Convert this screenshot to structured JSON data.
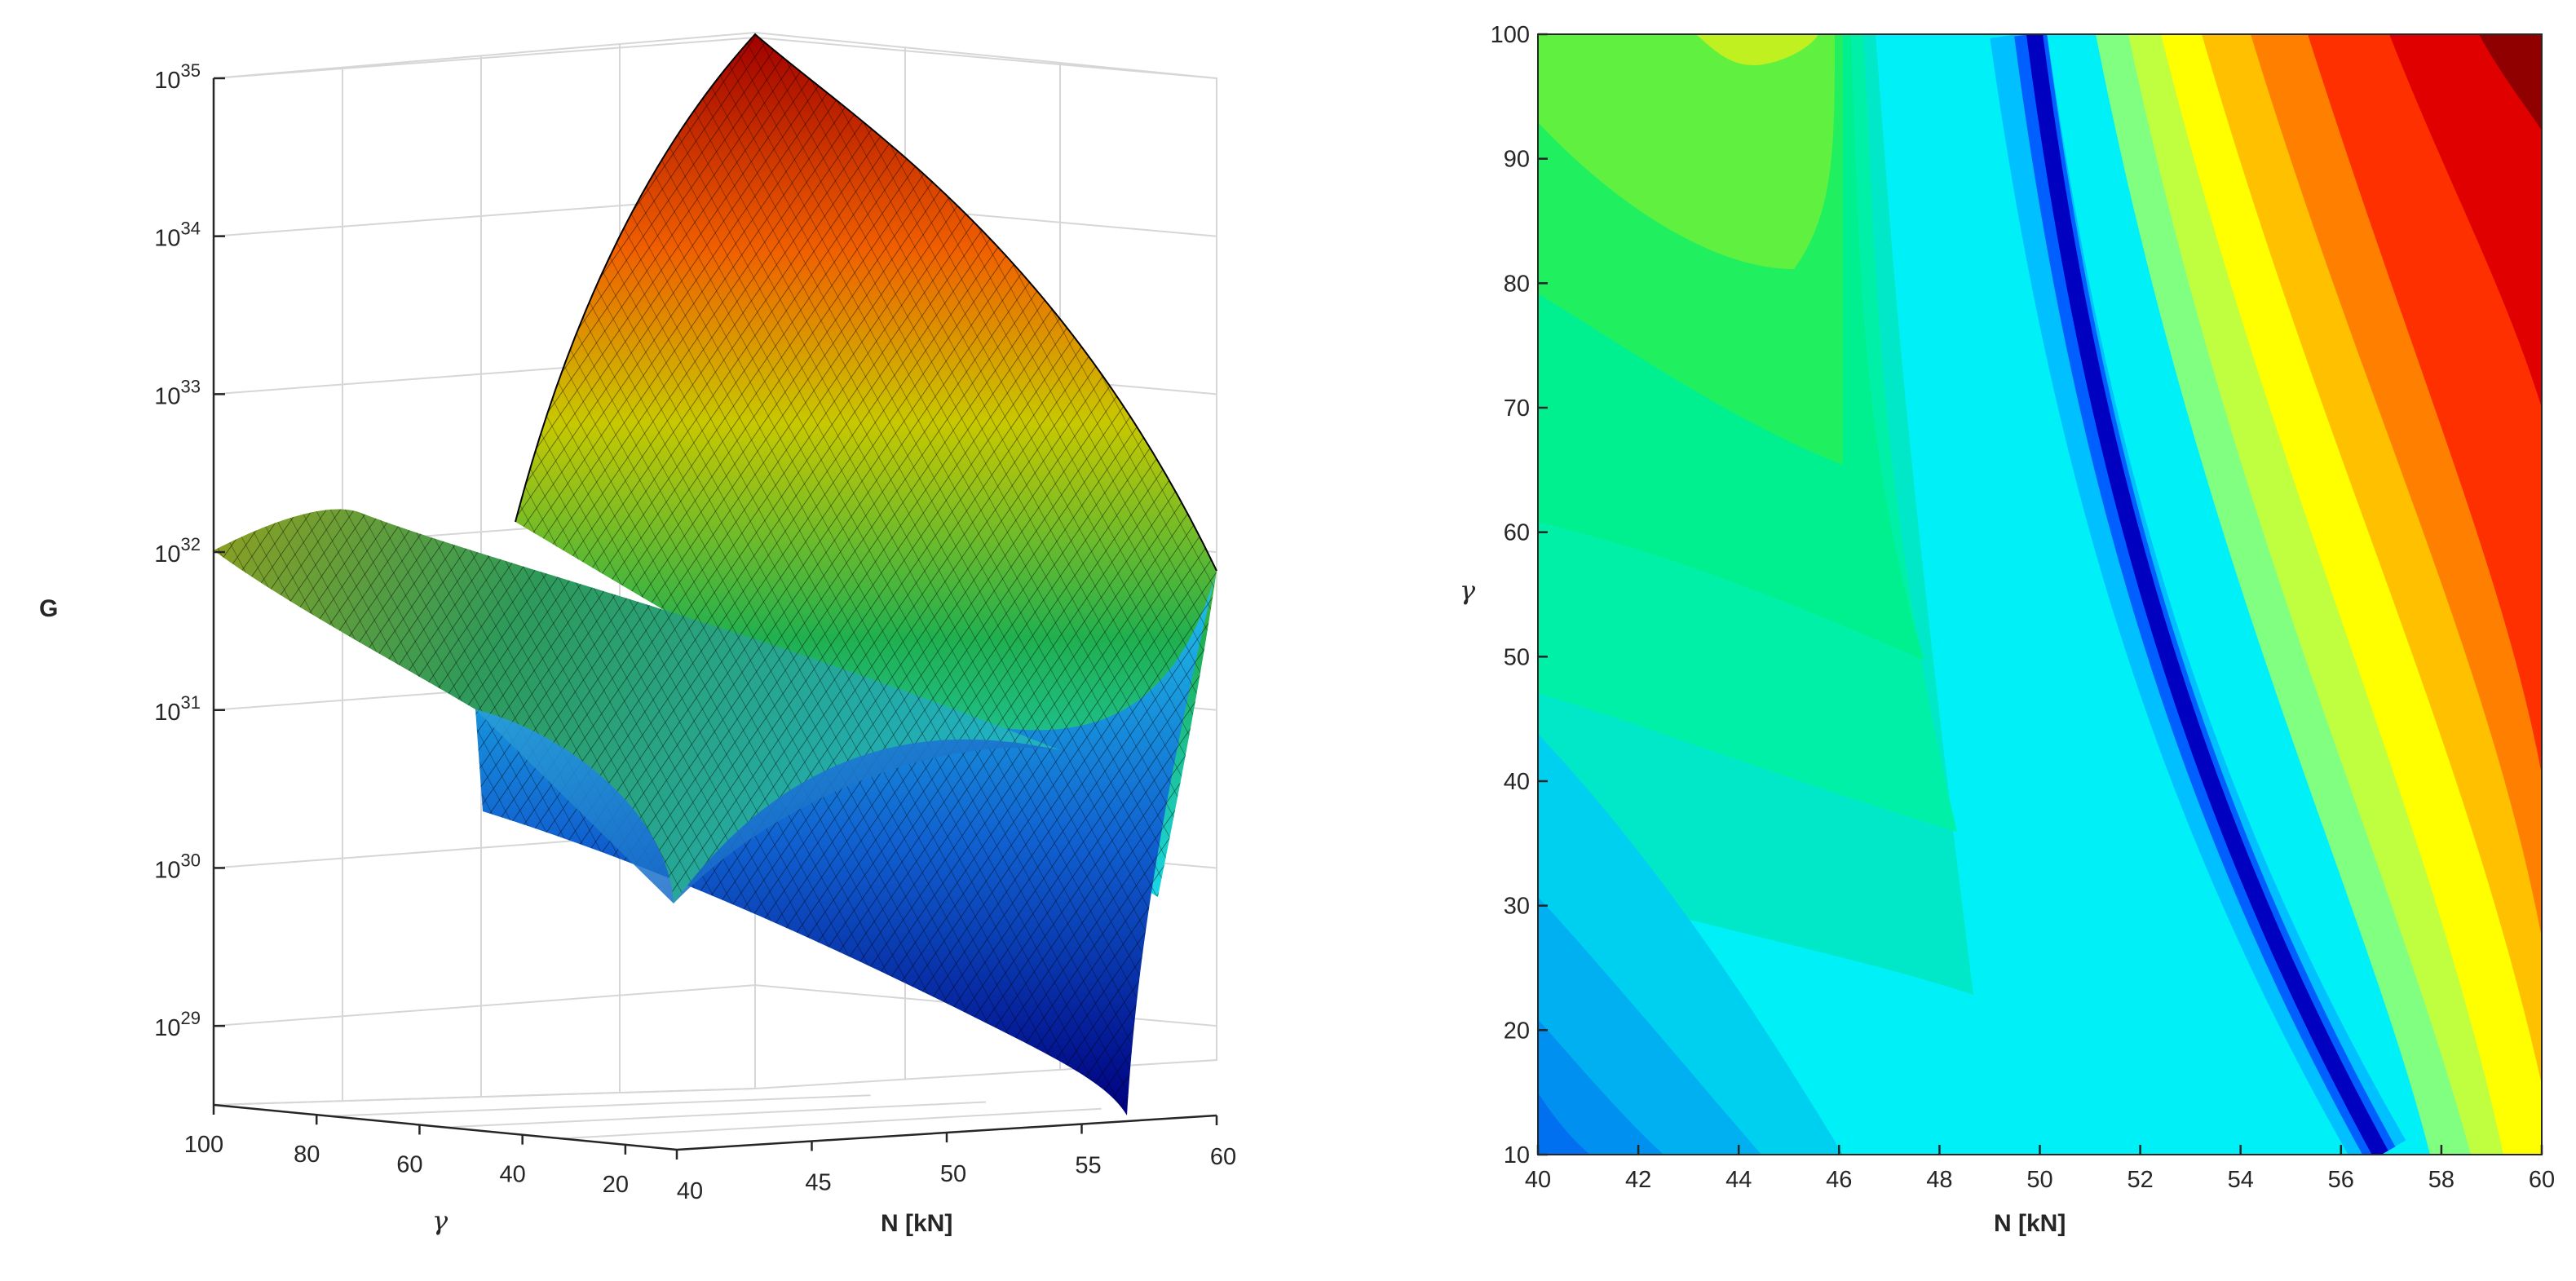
{
  "chart_data": [
    {
      "type": "surface",
      "zlabel": "G",
      "xlabel": "N [kN]",
      "ylabel": "γ",
      "z_scale": "log",
      "z_ticks": [
        "10^29",
        "10^30",
        "10^31",
        "10^32",
        "10^33",
        "10^34",
        "10^35"
      ],
      "z_ticks_base": [
        "10",
        "10",
        "10",
        "10",
        "10",
        "10",
        "10"
      ],
      "z_ticks_exp": [
        "29",
        "30",
        "31",
        "32",
        "33",
        "34",
        "35"
      ],
      "x_ticks": [
        "40",
        "45",
        "50",
        "55",
        "60"
      ],
      "y_ticks": [
        "100",
        "80",
        "60",
        "40",
        "20"
      ],
      "xlim": [
        40,
        60
      ],
      "ylim": [
        10,
        100
      ],
      "zlim_log10": [
        28.5,
        35
      ],
      "grid": true,
      "colormap": "jet",
      "surface_log10G_samples": [
        {
          "N": 40,
          "gamma": 100,
          "log10G": 32.0
        },
        {
          "N": 40,
          "gamma": 10,
          "log10G": 31.0
        },
        {
          "N": 50,
          "gamma": 100,
          "log10G": 31.3
        },
        {
          "N": 50,
          "gamma": 40,
          "log10G": 30.0
        },
        {
          "N": 56,
          "gamma": 10,
          "log10G": 28.5
        },
        {
          "N": 60,
          "gamma": 100,
          "log10G": 35.0
        },
        {
          "N": 60,
          "gamma": 10,
          "log10G": 31.8
        }
      ]
    },
    {
      "type": "contour",
      "xlabel": "N [kN]",
      "ylabel": "γ",
      "x_ticks": [
        "40",
        "42",
        "44",
        "46",
        "48",
        "50",
        "52",
        "54",
        "56",
        "58",
        "60"
      ],
      "y_ticks": [
        "10",
        "20",
        "30",
        "40",
        "50",
        "60",
        "70",
        "80",
        "90",
        "100"
      ],
      "xlim": [
        40,
        60
      ],
      "ylim": [
        10,
        100
      ],
      "colormap": "jet",
      "levels": 24
    }
  ]
}
